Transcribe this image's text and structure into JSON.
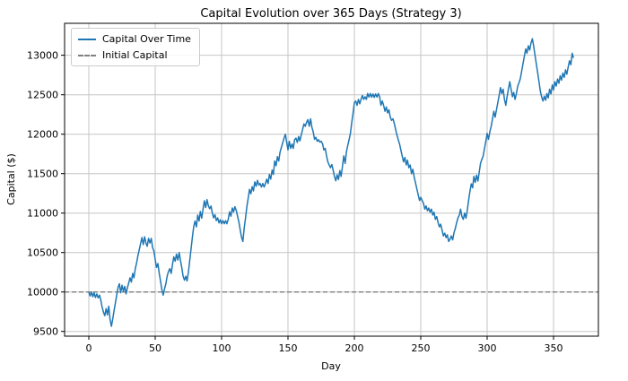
{
  "figure": {
    "title": "Capital Evolution over 365 Days (Strategy 3)",
    "xlabel": "Day",
    "ylabel": "Capital ($)"
  },
  "legend": {
    "items": [
      {
        "label": "Capital Over Time",
        "style": "solid",
        "color": "#1f77b4"
      },
      {
        "label": "Initial Capital",
        "style": "dashed",
        "color": "#808080"
      }
    ]
  },
  "colors": {
    "capital_line": "#1f77b4",
    "initial_capital_line": "#808080",
    "grid": "#c6c6c6",
    "spine": "#000000",
    "background": "#ffffff"
  },
  "chart_data": {
    "type": "line",
    "title": "Capital Evolution over 365 Days (Strategy 3)",
    "xlabel": "Day",
    "ylabel": "Capital ($)",
    "grid": true,
    "legend_position": "upper left",
    "xticks": [
      0,
      50,
      100,
      150,
      200,
      250,
      300,
      350
    ],
    "yticks": [
      9500,
      10000,
      10500,
      11000,
      11500,
      12000,
      12500,
      13000
    ],
    "xlim": [
      -18.25,
      383.75
    ],
    "ylim": [
      9440,
      13405
    ],
    "initial_capital": 10000,
    "days": 365,
    "final_capital": 12965,
    "min_capital": 9565,
    "max_capital": 13210,
    "series": [
      {
        "name": "Capital Over Time",
        "color": "#1f77b4",
        "style": "solid",
        "x_is_day_index": true,
        "values": [
          10000,
          9950,
          10000,
          9940,
          9990,
          9930,
          9975,
          9925,
          9960,
          9900,
          9810,
          9745,
          9700,
          9790,
          9710,
          9820,
          9650,
          9565,
          9660,
          9760,
          9860,
          9960,
          10060,
          10105,
          9990,
          10085,
          10010,
          10070,
          9975,
          10050,
          10110,
          10180,
          10125,
          10235,
          10180,
          10295,
          10370,
          10465,
          10540,
          10615,
          10690,
          10600,
          10700,
          10620,
          10580,
          10680,
          10620,
          10680,
          10560,
          10520,
          10410,
          10310,
          10360,
          10235,
          10140,
          10030,
          9960,
          10040,
          10105,
          10200,
          10260,
          10295,
          10235,
          10350,
          10445,
          10390,
          10480,
          10405,
          10500,
          10405,
          10310,
          10200,
          10150,
          10200,
          10140,
          10250,
          10400,
          10550,
          10700,
          10825,
          10900,
          10825,
          10975,
          10900,
          11020,
          10935,
          11050,
          11155,
          11070,
          11170,
          11095,
          11055,
          11090,
          11000,
          10940,
          10980,
          10905,
          10940,
          10875,
          10915,
          10865,
          10905,
          10865,
          10905,
          10865,
          10920,
          11015,
          10960,
          11065,
          11015,
          11080,
          11035,
          10960,
          10885,
          10790,
          10695,
          10640,
          10810,
          10940,
          11075,
          11185,
          11300,
          11245,
          11335,
          11280,
          11395,
          11340,
          11415,
          11355,
          11375,
          11330,
          11375,
          11330,
          11375,
          11430,
          11375,
          11490,
          11430,
          11545,
          11490,
          11660,
          11600,
          11715,
          11660,
          11770,
          11830,
          11890,
          11950,
          12000,
          11900,
          11800,
          11910,
          11820,
          11875,
          11820,
          11930,
          11950,
          11895,
          11970,
          11915,
          11990,
          12060,
          12130,
          12100,
          12150,
          12185,
          12100,
          12195,
          12085,
          12030,
          11935,
          11960,
          11910,
          11930,
          11900,
          11910,
          11880,
          11800,
          11820,
          11730,
          11650,
          11610,
          11575,
          11615,
          11540,
          11465,
          11410,
          11485,
          11425,
          11540,
          11465,
          11590,
          11725,
          11630,
          11780,
          11855,
          11930,
          12010,
          12150,
          12270,
          12400,
          12420,
          12365,
          12440,
          12385,
          12440,
          12490,
          12440,
          12475,
          12440,
          12515,
          12470,
          12515,
          12470,
          12510,
          12465,
          12510,
          12470,
          12515,
          12470,
          12365,
          12420,
          12365,
          12290,
          12345,
          12270,
          12310,
          12215,
          12175,
          12195,
          12140,
          12065,
          11990,
          11930,
          11875,
          11800,
          11725,
          11650,
          11705,
          11610,
          11670,
          11575,
          11610,
          11500,
          11555,
          11460,
          11385,
          11310,
          11235,
          11160,
          11200,
          11160,
          11125,
          11050,
          11090,
          11030,
          11065,
          11010,
          11050,
          10975,
          11010,
          10920,
          10955,
          10880,
          10825,
          10860,
          10785,
          10710,
          10745,
          10690,
          10725,
          10640,
          10670,
          10710,
          10660,
          10750,
          10805,
          10880,
          10940,
          10975,
          11050,
          10955,
          10920,
          11000,
          10935,
          11030,
          11160,
          11275,
          11370,
          11320,
          11465,
          11390,
          11480,
          11405,
          11520,
          11630,
          11680,
          11725,
          11820,
          11915,
          12010,
          11935,
          12030,
          12100,
          12195,
          12290,
          12215,
          12310,
          12400,
          12495,
          12590,
          12515,
          12570,
          12440,
          12365,
          12475,
          12570,
          12665,
          12570,
          12475,
          12530,
          12440,
          12515,
          12610,
          12655,
          12705,
          12800,
          12895,
          12990,
          13080,
          13025,
          13120,
          13065,
          13155,
          13210,
          13120,
          13005,
          12890,
          12780,
          12665,
          12550,
          12475,
          12420,
          12480,
          12430,
          12515,
          12460,
          12570,
          12510,
          12625,
          12560,
          12665,
          12610,
          12700,
          12645,
          12740,
          12685,
          12775,
          12720,
          12815,
          12760,
          12850,
          12930,
          12880,
          13025,
          12965
        ]
      },
      {
        "name": "Initial Capital",
        "color": "#808080",
        "style": "dashed",
        "value": 10000
      }
    ]
  }
}
